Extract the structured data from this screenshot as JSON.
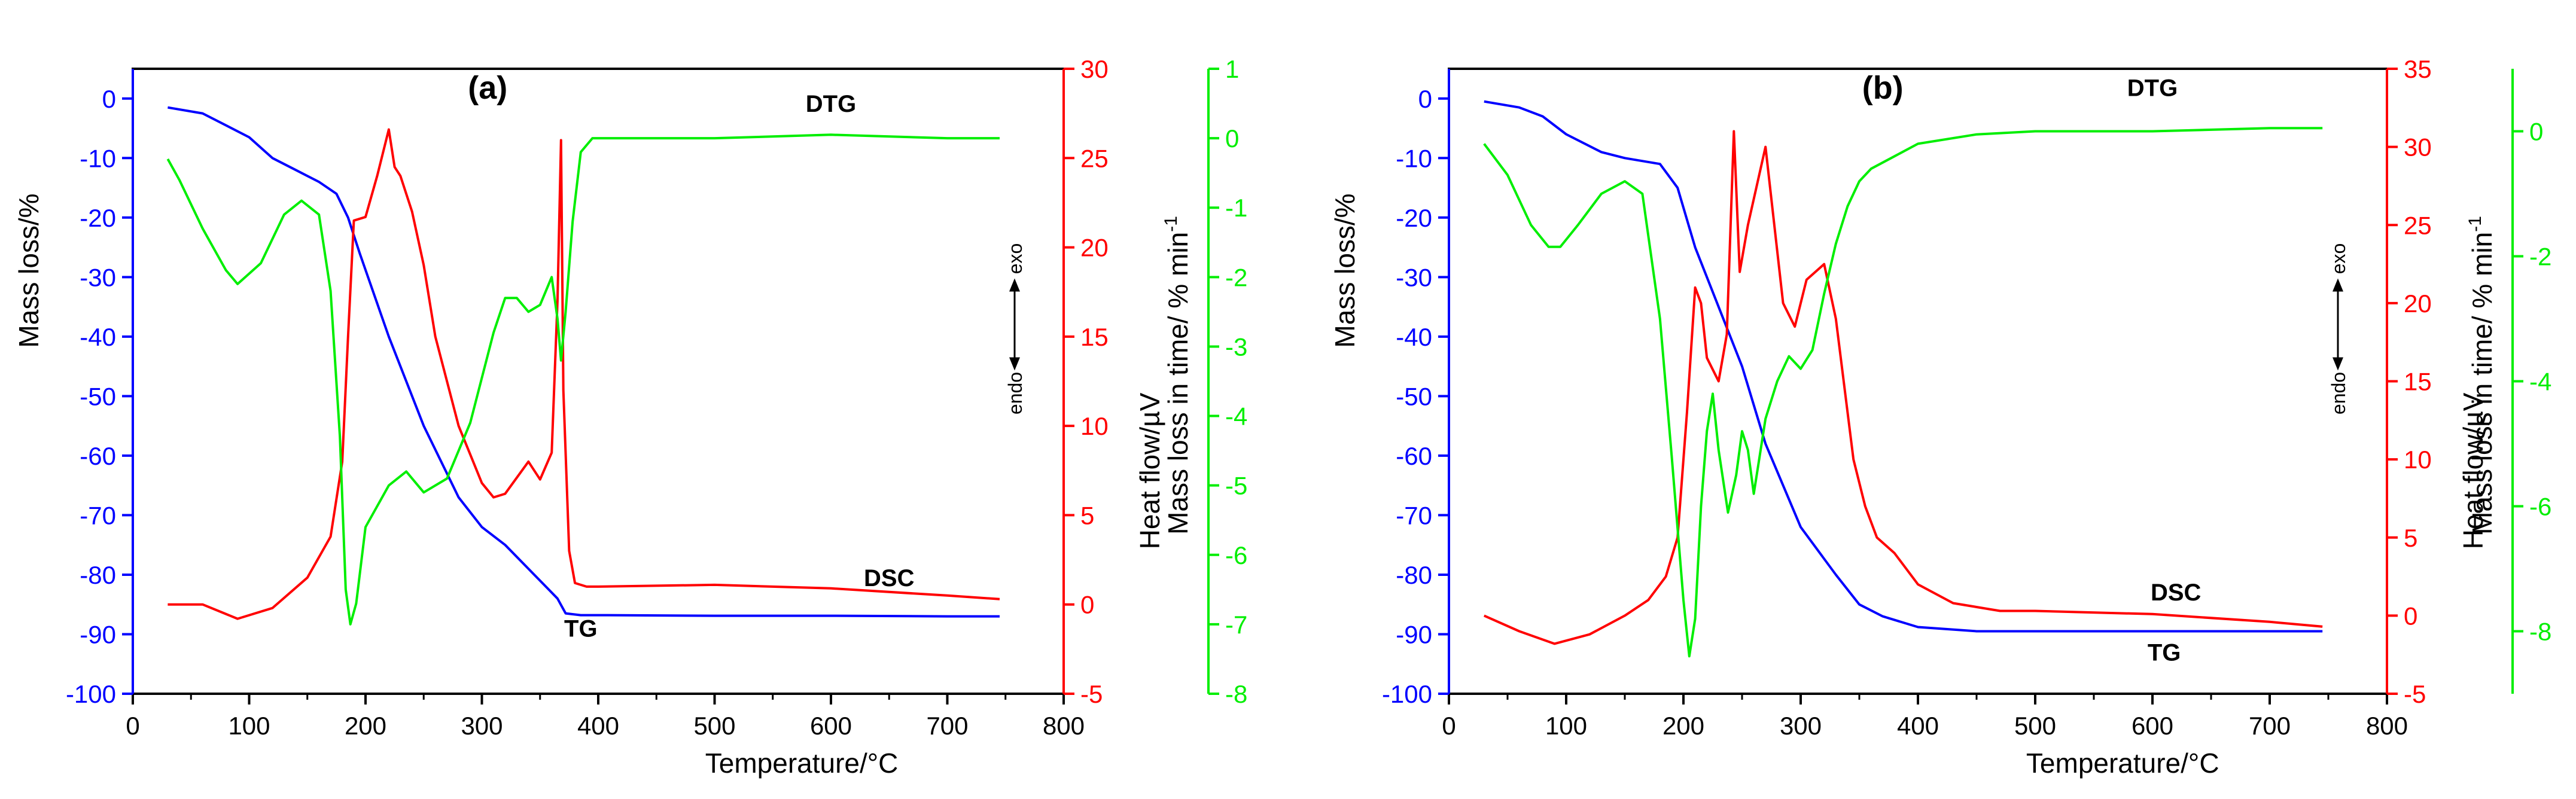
{
  "colors": {
    "tg": "#0000ff",
    "dsc": "#ff0000",
    "dtg": "#00ee00",
    "axis": "#000000"
  },
  "chart_data": [
    {
      "type": "line",
      "panel_label": "(a)",
      "xlabel": "Temperature/°C",
      "xlim": [
        0,
        800
      ],
      "x_ticks": [
        "0",
        "100",
        "200",
        "300",
        "400",
        "500",
        "600",
        "700",
        "800"
      ],
      "axes": {
        "left": {
          "label": "Mass loss/%",
          "lim": [
            -100,
            5
          ],
          "ticks": [
            "0",
            "-10",
            "-20",
            "-30",
            "-40",
            "-50",
            "-60",
            "-70",
            "-80",
            "-90",
            "-100"
          ]
        },
        "right1": {
          "label": "Heat flow/µV",
          "lim": [
            -5,
            30
          ],
          "ticks": [
            "30",
            "25",
            "20",
            "15",
            "10",
            "5",
            "0",
            "-5"
          ]
        },
        "right2": {
          "label": "Mass loss in time/ % min",
          "label_sup": "-1",
          "lim": [
            -8,
            1
          ],
          "ticks": [
            "1",
            "0",
            "-1",
            "-2",
            "-3",
            "-4",
            "-5",
            "-6",
            "-7",
            "-8"
          ]
        }
      },
      "direction": {
        "endo": "endo",
        "exo": "exo"
      },
      "series": [
        {
          "name": "TG",
          "axis": "left",
          "label_at": [
            385,
            -89
          ],
          "x": [
            30,
            60,
            100,
            120,
            140,
            160,
            175,
            185,
            195,
            220,
            250,
            280,
            300,
            320,
            340,
            355,
            365,
            372,
            385,
            400,
            500,
            600,
            700,
            745
          ],
          "y": [
            -1.5,
            -2.5,
            -6.5,
            -10,
            -12,
            -14,
            -16,
            -20,
            -26,
            -40,
            -55,
            -67,
            -72,
            -75,
            -79,
            -82,
            -84,
            -86.5,
            -86.8,
            -86.8,
            -86.9,
            -86.9,
            -87,
            -87
          ]
        },
        {
          "name": "DSC",
          "axis": "right1",
          "label_at": [
            650,
            1.5
          ],
          "x": [
            30,
            60,
            90,
            120,
            150,
            170,
            180,
            185,
            190,
            200,
            210,
            220,
            225,
            230,
            240,
            250,
            260,
            280,
            300,
            310,
            320,
            340,
            350,
            360,
            365,
            368,
            370,
            375,
            380,
            390,
            400,
            500,
            600,
            700,
            745
          ],
          "y": [
            0,
            0,
            -0.8,
            -0.2,
            1.5,
            3.8,
            8,
            15,
            21.5,
            21.7,
            24,
            26.6,
            24.5,
            24,
            22,
            19,
            15,
            10,
            6.8,
            6,
            6.2,
            8,
            7,
            8.5,
            17,
            26,
            12,
            3,
            1.2,
            1,
            1,
            1.1,
            0.9,
            0.5,
            0.3
          ]
        },
        {
          "name": "DTG",
          "axis": "right2",
          "label_at": [
            600,
            0.5
          ],
          "x": [
            30,
            40,
            60,
            80,
            90,
            110,
            130,
            145,
            160,
            170,
            178,
            183,
            187,
            192,
            200,
            220,
            235,
            250,
            270,
            290,
            310,
            320,
            330,
            340,
            350,
            360,
            365,
            368,
            372,
            378,
            385,
            395,
            400,
            500,
            600,
            700,
            745
          ],
          "y": [
            -0.3,
            -0.6,
            -1.3,
            -1.9,
            -2.1,
            -1.8,
            -1.1,
            -0.9,
            -1.1,
            -2.2,
            -4.3,
            -6.5,
            -7,
            -6.7,
            -5.6,
            -5,
            -4.8,
            -5.1,
            -4.9,
            -4.1,
            -2.8,
            -2.3,
            -2.3,
            -2.5,
            -2.4,
            -2,
            -2.6,
            -3.2,
            -2.5,
            -1.2,
            -0.2,
            0,
            0,
            0,
            0.05,
            0,
            0
          ]
        }
      ]
    },
    {
      "type": "line",
      "panel_label": "(b)",
      "xlabel": "Temperature/°C",
      "xlim": [
        0,
        800
      ],
      "x_ticks": [
        "0",
        "100",
        "200",
        "300",
        "400",
        "500",
        "600",
        "700",
        "800"
      ],
      "axes": {
        "left": {
          "label": "Mass loss/%",
          "lim": [
            -100,
            5
          ],
          "ticks": [
            "0",
            "-10",
            "-20",
            "-30",
            "-40",
            "-50",
            "-60",
            "-70",
            "-80",
            "-90",
            "-100"
          ]
        },
        "right1": {
          "label": "Heat flow/µV",
          "lim": [
            -5,
            35
          ],
          "ticks": [
            "35",
            "30",
            "25",
            "20",
            "15",
            "10",
            "5",
            "0",
            "-5"
          ]
        },
        "right2": {
          "label": "Mass loss in time/ % min",
          "label_sup": "-1",
          "lim": [
            -9,
            1
          ],
          "ticks": [
            "0",
            "-2",
            "-4",
            "-6",
            "-8"
          ]
        }
      },
      "direction": {
        "endo": "endo",
        "exo": "exo"
      },
      "series": [
        {
          "name": "TG",
          "axis": "left",
          "label_at": [
            610,
            -93
          ],
          "x": [
            30,
            60,
            80,
            100,
            130,
            150,
            180,
            195,
            210,
            230,
            250,
            270,
            300,
            330,
            350,
            370,
            400,
            450,
            500,
            600,
            700,
            745
          ],
          "y": [
            -0.5,
            -1.5,
            -3,
            -6,
            -9,
            -10,
            -11,
            -15,
            -25,
            -35,
            -45,
            -58,
            -72,
            -80,
            -85,
            -87,
            -88.8,
            -89.5,
            -89.5,
            -89.5,
            -89.5,
            -89.5
          ]
        },
        {
          "name": "DSC",
          "axis": "right1",
          "label_at": [
            620,
            1.5
          ],
          "x": [
            30,
            60,
            90,
            120,
            150,
            170,
            185,
            195,
            203,
            210,
            215,
            220,
            230,
            237,
            243,
            248,
            255,
            270,
            285,
            295,
            305,
            320,
            330,
            345,
            355,
            365,
            380,
            400,
            430,
            470,
            500,
            600,
            700,
            745
          ],
          "y": [
            0,
            -1,
            -1.8,
            -1.2,
            0,
            1,
            2.5,
            5,
            13,
            21,
            20,
            16.5,
            15,
            18,
            31,
            22,
            25,
            30,
            20,
            18.5,
            21.5,
            22.5,
            19,
            10,
            7,
            5,
            4,
            2,
            0.8,
            0.3,
            0.3,
            0.1,
            -0.4,
            -0.7
          ]
        },
        {
          "name": "DTG",
          "axis": "right2",
          "label_at": [
            600,
            0.7
          ],
          "x": [
            30,
            50,
            70,
            85,
            95,
            110,
            130,
            150,
            165,
            180,
            190,
            200,
            205,
            210,
            215,
            220,
            225,
            230,
            238,
            245,
            250,
            255,
            260,
            265,
            270,
            280,
            290,
            300,
            310,
            320,
            330,
            340,
            350,
            360,
            380,
            400,
            450,
            500,
            600,
            700,
            745
          ],
          "y": [
            -0.2,
            -0.7,
            -1.5,
            -1.85,
            -1.85,
            -1.5,
            -1,
            -0.8,
            -1,
            -3,
            -5.2,
            -7.5,
            -8.4,
            -7.8,
            -6,
            -4.8,
            -4.2,
            -5.1,
            -6.1,
            -5.5,
            -4.8,
            -5.1,
            -5.8,
            -5.2,
            -4.6,
            -4,
            -3.6,
            -3.8,
            -3.5,
            -2.6,
            -1.8,
            -1.2,
            -0.8,
            -0.6,
            -0.4,
            -0.2,
            -0.05,
            0,
            0,
            0.05,
            0.05
          ]
        }
      ]
    }
  ]
}
